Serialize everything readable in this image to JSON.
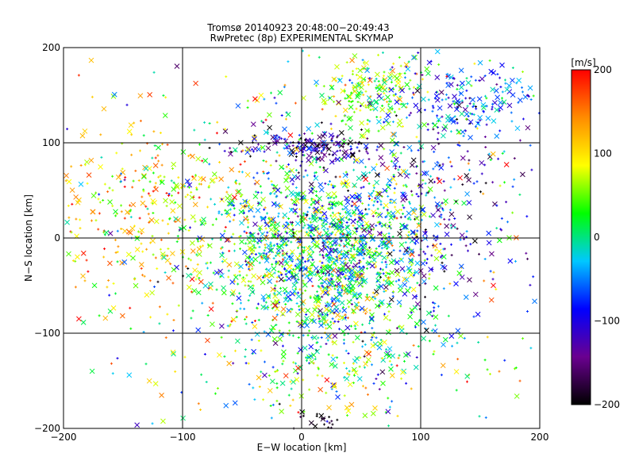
{
  "chart_data": {
    "type": "scatter",
    "title": "Tromsø 20140923 20:48:00−20:49:43",
    "subtitle": "RwPretec (8p) EXPERIMENTAL SKYMAP",
    "xlabel": "E−W location [km]",
    "ylabel": "N−S location [km]",
    "xlim": [
      -200,
      200
    ],
    "ylim": [
      -200,
      200
    ],
    "xticks": [
      -200,
      -100,
      0,
      100,
      200
    ],
    "yticks": [
      -200,
      -100,
      0,
      100,
      200
    ],
    "xtick_labels": [
      "−200",
      "−100",
      "0",
      "100",
      "200"
    ],
    "ytick_labels": [
      "−200",
      "−100",
      "0",
      "100",
      "200"
    ],
    "grid": true,
    "markers": [
      "x",
      "+"
    ],
    "colorbar": {
      "label": "[m/s]",
      "range": [
        -200,
        200
      ],
      "ticks": [
        200,
        100,
        0,
        -100,
        -200
      ],
      "tick_labels": [
        "200",
        "100",
        "0",
        "−100",
        "−200"
      ],
      "colormap": [
        "#000000",
        "#6a0090",
        "#0000ff",
        "#00c8ff",
        "#00ff00",
        "#ffff00",
        "#ff8c00",
        "#ff0000"
      ]
    },
    "clusters": [
      {
        "x": 20,
        "y": -20,
        "sx": 40,
        "sy": 40,
        "n": 900,
        "v": 10,
        "sv": 60
      },
      {
        "x": 25,
        "y": 5,
        "sx": 55,
        "sy": 55,
        "n": 700,
        "v": -20,
        "sv": 80
      },
      {
        "x": 10,
        "y": 95,
        "sx": 30,
        "sy": 8,
        "n": 160,
        "v": -140,
        "sv": 50
      },
      {
        "x": 60,
        "y": 155,
        "sx": 22,
        "sy": 20,
        "n": 200,
        "v": 60,
        "sv": 40
      },
      {
        "x": 140,
        "y": 140,
        "sx": 30,
        "sy": 25,
        "n": 200,
        "v": -60,
        "sv": 50
      },
      {
        "x": -120,
        "y": 30,
        "sx": 50,
        "sy": 50,
        "n": 350,
        "v": 100,
        "sv": 50
      },
      {
        "x": 20,
        "y": -120,
        "sx": 60,
        "sy": 40,
        "n": 250,
        "v": 40,
        "sv": 70
      },
      {
        "x": 100,
        "y": 20,
        "sx": 40,
        "sy": 60,
        "n": 220,
        "v": -120,
        "sv": 60
      },
      {
        "x": 0,
        "y": 0,
        "sx": 120,
        "sy": 110,
        "n": 450,
        "v": 30,
        "sv": 110
      },
      {
        "x": 10,
        "y": -190,
        "sx": 15,
        "sy": 8,
        "n": 25,
        "v": -190,
        "sv": 10
      }
    ]
  }
}
